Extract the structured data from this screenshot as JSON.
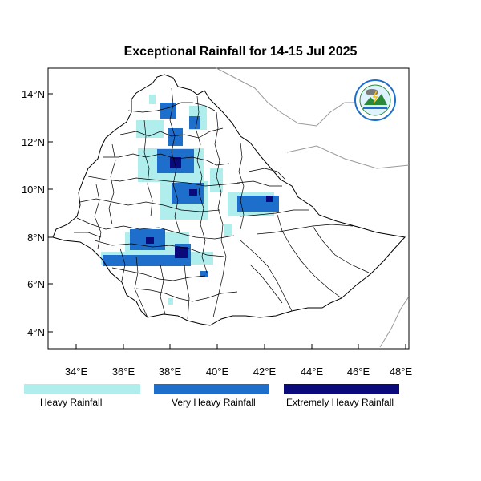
{
  "title": "Exceptional Rainfall for 14-15 Jul 2025",
  "axes": {
    "x_ticks": [
      "34°E",
      "36°E",
      "38°E",
      "40°E",
      "42°E",
      "44°E",
      "46°E",
      "48°E"
    ],
    "y_ticks": [
      "14°N",
      "12°N",
      "10°N",
      "8°N",
      "6°N",
      "4°N"
    ],
    "lon_range": [
      32.8,
      48.2
    ],
    "lat_range": [
      3.2,
      15.0
    ]
  },
  "legend": [
    {
      "label": "Heavy Rainfall",
      "color": "#b0eeee"
    },
    {
      "label": "Very Heavy Rainfall",
      "color": "#1e6fcc"
    },
    {
      "label": "Extremely Heavy Rainfall",
      "color": "#0a0a7a"
    }
  ],
  "colors": {
    "heavy": "#b0eeee",
    "very_heavy": "#1e6fcc",
    "extreme": "#0a0a7a",
    "border": "#000000",
    "neighbor_border": "#9a9a9a"
  },
  "logo_icon": "ethiopian-meteorology-institute-logo-icon"
}
